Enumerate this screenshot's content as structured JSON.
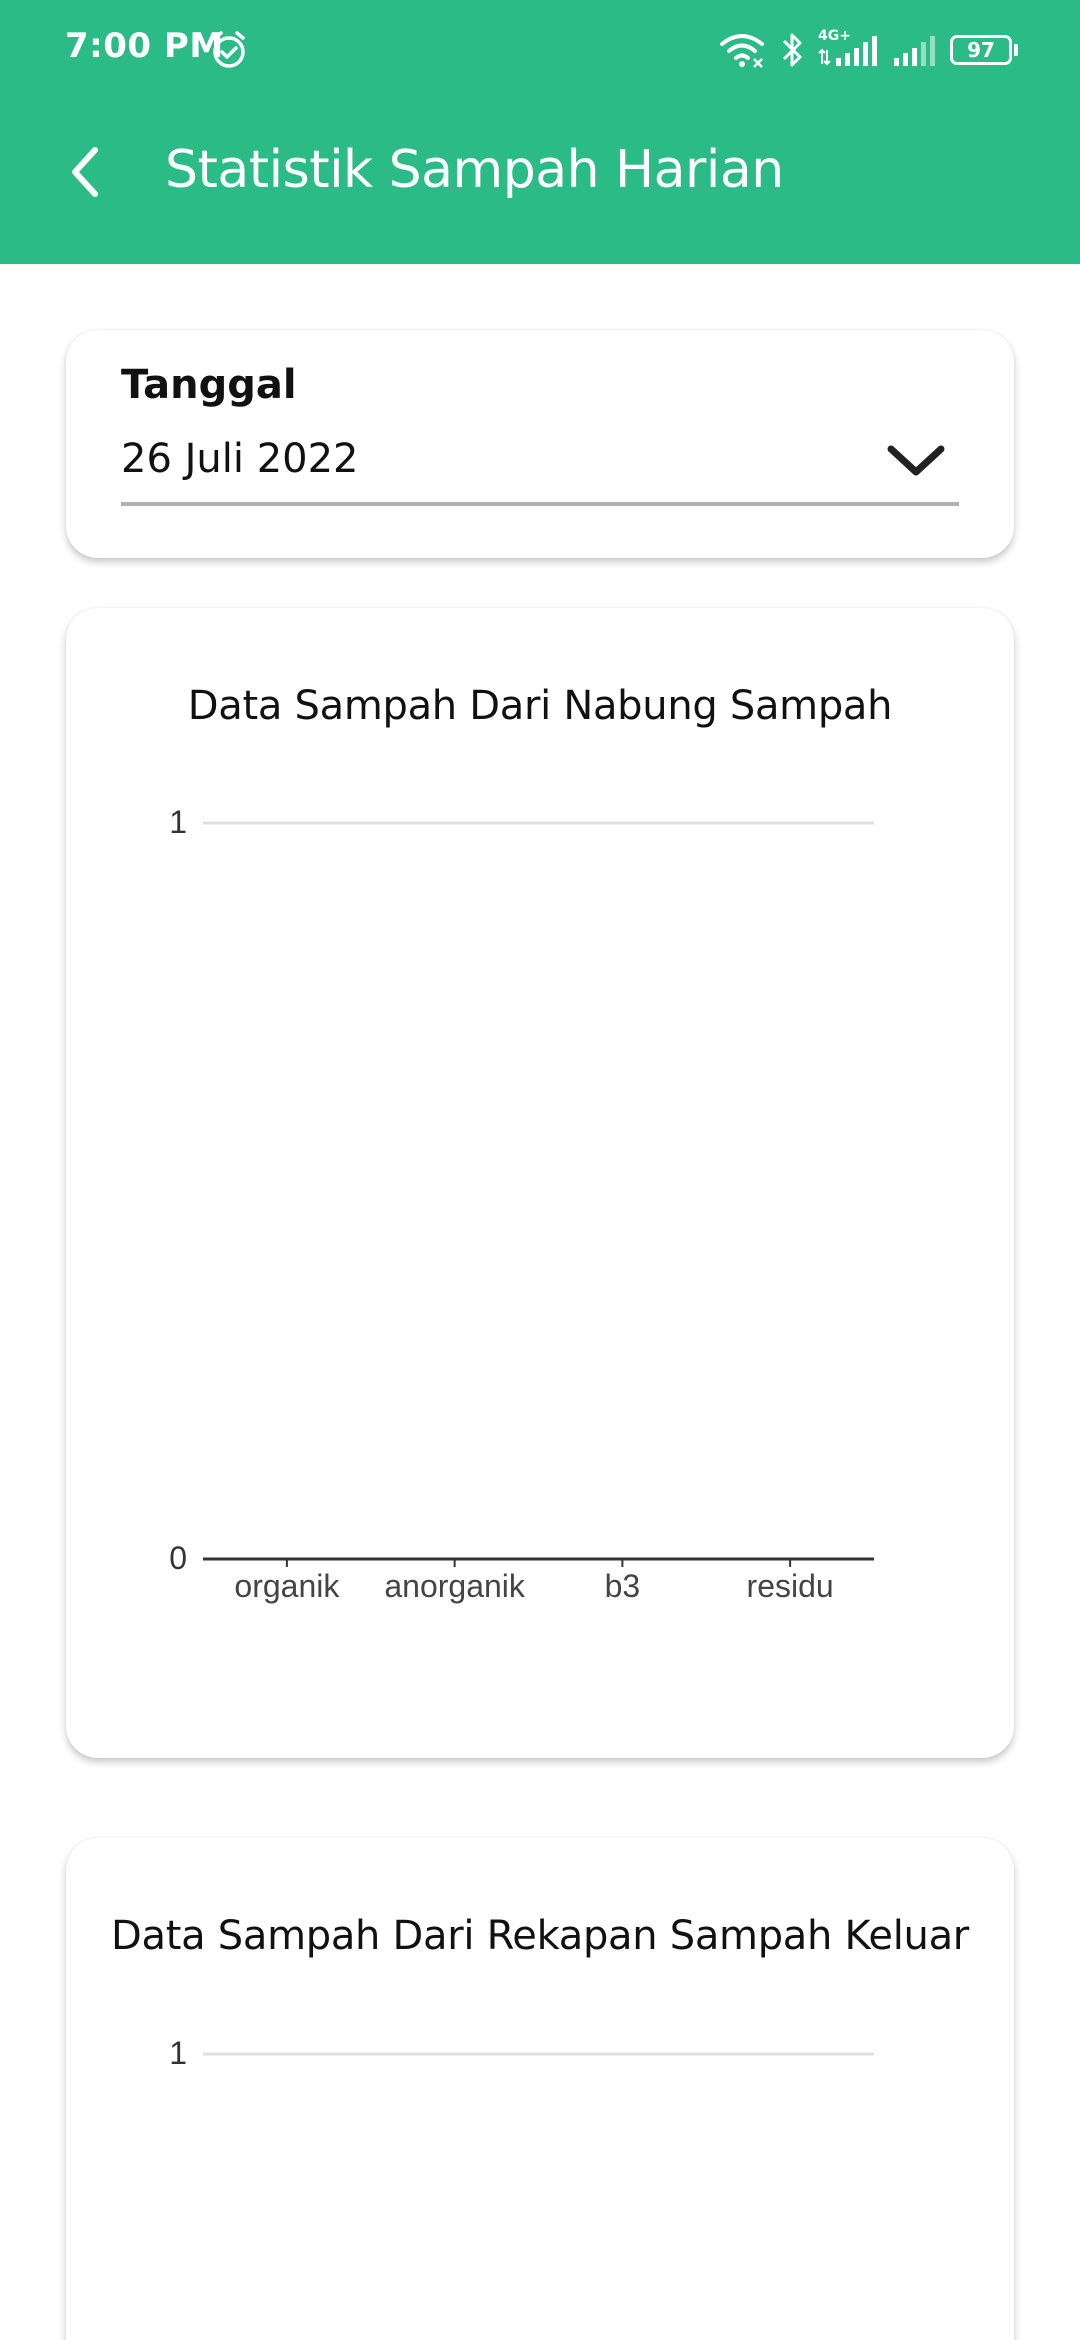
{
  "status_bar": {
    "time": "7:00 PM",
    "network_label": "4G+",
    "battery": "97",
    "icons": [
      "alarm-icon",
      "wifi-icon",
      "bluetooth-icon",
      "signal-4g-icon",
      "signal-icon",
      "battery-icon"
    ]
  },
  "app_bar": {
    "title": "Statistik Sampah Harian",
    "back_icon": "back-arrow-icon",
    "color": "#2bbb87"
  },
  "date_filter": {
    "label": "Tanggal",
    "value": "26 Juli 2022",
    "icon": "chevron-down-icon"
  },
  "chart_data": [
    {
      "type": "bar",
      "title": "Data Sampah Dari Nabung Sampah",
      "categories": [
        "organik",
        "anorganik",
        "b3",
        "residu"
      ],
      "values": [
        0,
        0,
        0,
        0
      ],
      "ylim": [
        0,
        1
      ],
      "yticks": [
        "0",
        "1"
      ],
      "xlabel": "",
      "ylabel": "",
      "grid": true
    },
    {
      "type": "bar",
      "title": "Data Sampah Dari Rekapan Sampah Keluar",
      "categories": [],
      "values": [],
      "ylim": [
        0,
        1
      ],
      "yticks": [
        "1"
      ],
      "xlabel": "",
      "ylabel": "",
      "grid": true
    }
  ]
}
